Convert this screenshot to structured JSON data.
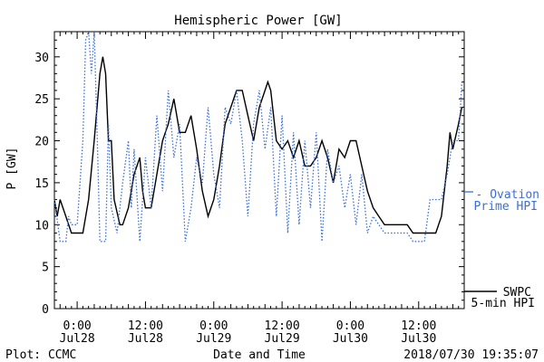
{
  "chart_data": {
    "type": "line",
    "title": "Hemispheric Power [GW]",
    "xlabel": "Date and Time",
    "ylabel": "P [GW]",
    "ylim": [
      0,
      33
    ],
    "yticks": [
      0,
      5,
      10,
      15,
      20,
      25,
      30
    ],
    "xlim": [
      "2018-07-27 20:00",
      "2018-07-30 20:00"
    ],
    "xticks": [
      {
        "t": "2018-07-28 00:00",
        "line1": "0:00",
        "line2": "Jul28"
      },
      {
        "t": "2018-07-28 12:00",
        "line1": "12:00",
        "line2": "Jul28"
      },
      {
        "t": "2018-07-29 00:00",
        "line1": "0:00",
        "line2": "Jul29"
      },
      {
        "t": "2018-07-29 12:00",
        "line1": "12:00",
        "line2": "Jul29"
      },
      {
        "t": "2018-07-30 00:00",
        "line1": "0:00",
        "line2": "Jul30"
      },
      {
        "t": "2018-07-30 12:00",
        "line1": "12:00",
        "line2": "Jul30"
      }
    ],
    "grid": false,
    "series": [
      {
        "name": "SWPC 5-min HPI",
        "color": "#000000",
        "style": "solid",
        "legend": [
          "SWPC",
          "5-min HPI"
        ],
        "points": [
          [
            "2018-07-27 20:00",
            13
          ],
          [
            "2018-07-27 20:30",
            11
          ],
          [
            "2018-07-27 21:00",
            13
          ],
          [
            "2018-07-27 22:00",
            11
          ],
          [
            "2018-07-27 23:00",
            9
          ],
          [
            "2018-07-28 00:00",
            9
          ],
          [
            "2018-07-28 01:00",
            9
          ],
          [
            "2018-07-28 02:00",
            13
          ],
          [
            "2018-07-28 03:00",
            20
          ],
          [
            "2018-07-28 04:00",
            28
          ],
          [
            "2018-07-28 04:30",
            30
          ],
          [
            "2018-07-28 05:00",
            28
          ],
          [
            "2018-07-28 05:30",
            20
          ],
          [
            "2018-07-28 06:00",
            20
          ],
          [
            "2018-07-28 06:30",
            13
          ],
          [
            "2018-07-28 07:30",
            10
          ],
          [
            "2018-07-28 08:00",
            10
          ],
          [
            "2018-07-28 09:00",
            12
          ],
          [
            "2018-07-28 10:00",
            16
          ],
          [
            "2018-07-28 11:00",
            18
          ],
          [
            "2018-07-28 11:30",
            14
          ],
          [
            "2018-07-28 12:00",
            12
          ],
          [
            "2018-07-28 13:00",
            12
          ],
          [
            "2018-07-28 14:00",
            16
          ],
          [
            "2018-07-28 15:00",
            20
          ],
          [
            "2018-07-28 15:30",
            21
          ],
          [
            "2018-07-28 16:00",
            22
          ],
          [
            "2018-07-28 17:00",
            25
          ],
          [
            "2018-07-28 18:00",
            21
          ],
          [
            "2018-07-28 19:00",
            21
          ],
          [
            "2018-07-28 20:00",
            23
          ],
          [
            "2018-07-28 21:00",
            19
          ],
          [
            "2018-07-28 22:00",
            14
          ],
          [
            "2018-07-28 23:00",
            11
          ],
          [
            "2018-07-29 00:00",
            13
          ],
          [
            "2018-07-29 01:00",
            17
          ],
          [
            "2018-07-29 02:00",
            22
          ],
          [
            "2018-07-29 03:00",
            24
          ],
          [
            "2018-07-29 04:00",
            26
          ],
          [
            "2018-07-29 05:00",
            26
          ],
          [
            "2018-07-29 06:00",
            23
          ],
          [
            "2018-07-29 07:00",
            20
          ],
          [
            "2018-07-29 08:00",
            24
          ],
          [
            "2018-07-29 09:00",
            26
          ],
          [
            "2018-07-29 09:30",
            27
          ],
          [
            "2018-07-29 10:00",
            26
          ],
          [
            "2018-07-29 11:00",
            20
          ],
          [
            "2018-07-29 12:00",
            19
          ],
          [
            "2018-07-29 13:00",
            20
          ],
          [
            "2018-07-29 14:00",
            18
          ],
          [
            "2018-07-29 15:00",
            20
          ],
          [
            "2018-07-29 16:00",
            17
          ],
          [
            "2018-07-29 17:00",
            17
          ],
          [
            "2018-07-29 18:00",
            18
          ],
          [
            "2018-07-29 19:00",
            20
          ],
          [
            "2018-07-29 20:00",
            18
          ],
          [
            "2018-07-29 21:00",
            15
          ],
          [
            "2018-07-29 22:00",
            19
          ],
          [
            "2018-07-29 23:00",
            18
          ],
          [
            "2018-07-30 00:00",
            20
          ],
          [
            "2018-07-30 01:00",
            20
          ],
          [
            "2018-07-30 02:00",
            17
          ],
          [
            "2018-07-30 03:00",
            14
          ],
          [
            "2018-07-30 04:00",
            12
          ],
          [
            "2018-07-30 05:00",
            11
          ],
          [
            "2018-07-30 06:00",
            10
          ],
          [
            "2018-07-30 07:00",
            10
          ],
          [
            "2018-07-30 08:00",
            10
          ],
          [
            "2018-07-30 09:00",
            10
          ],
          [
            "2018-07-30 10:00",
            10
          ],
          [
            "2018-07-30 11:00",
            9
          ],
          [
            "2018-07-30 12:00",
            9
          ],
          [
            "2018-07-30 13:00",
            9
          ],
          [
            "2018-07-30 14:00",
            9
          ],
          [
            "2018-07-30 15:00",
            9
          ],
          [
            "2018-07-30 16:00",
            11
          ],
          [
            "2018-07-30 17:00",
            17
          ],
          [
            "2018-07-30 17:30",
            21
          ],
          [
            "2018-07-30 18:00",
            19
          ],
          [
            "2018-07-30 19:00",
            22
          ],
          [
            "2018-07-30 19:35",
            24
          ]
        ]
      },
      {
        "name": "Ovation Prime HPI",
        "color": "#3a6fd8",
        "style": "dotted",
        "legend": [
          "- Ovation",
          "Prime HPI"
        ],
        "points": [
          [
            "2018-07-27 20:00",
            13
          ],
          [
            "2018-07-27 21:00",
            8
          ],
          [
            "2018-07-27 22:00",
            8
          ],
          [
            "2018-07-27 22:30",
            11
          ],
          [
            "2018-07-27 23:00",
            10
          ],
          [
            "2018-07-28 00:00",
            10
          ],
          [
            "2018-07-28 01:00",
            20
          ],
          [
            "2018-07-28 01:30",
            32
          ],
          [
            "2018-07-28 02:00",
            33
          ],
          [
            "2018-07-28 02:30",
            28
          ],
          [
            "2018-07-28 03:00",
            33
          ],
          [
            "2018-07-28 03:30",
            21
          ],
          [
            "2018-07-28 04:00",
            8
          ],
          [
            "2018-07-28 05:00",
            8
          ],
          [
            "2018-07-28 05:30",
            22
          ],
          [
            "2018-07-28 06:00",
            12
          ],
          [
            "2018-07-28 07:00",
            9
          ],
          [
            "2018-07-28 08:00",
            15
          ],
          [
            "2018-07-28 09:00",
            20
          ],
          [
            "2018-07-28 09:30",
            12
          ],
          [
            "2018-07-28 10:00",
            19
          ],
          [
            "2018-07-28 11:00",
            8
          ],
          [
            "2018-07-28 12:00",
            18
          ],
          [
            "2018-07-28 13:00",
            12
          ],
          [
            "2018-07-28 14:00",
            23
          ],
          [
            "2018-07-28 15:00",
            14
          ],
          [
            "2018-07-28 16:00",
            26
          ],
          [
            "2018-07-28 17:00",
            18
          ],
          [
            "2018-07-28 18:00",
            22
          ],
          [
            "2018-07-28 19:00",
            8
          ],
          [
            "2018-07-28 20:00",
            12
          ],
          [
            "2018-07-28 21:00",
            18
          ],
          [
            "2018-07-28 22:00",
            15
          ],
          [
            "2018-07-28 23:00",
            24
          ],
          [
            "2018-07-29 00:00",
            16
          ],
          [
            "2018-07-29 01:00",
            12
          ],
          [
            "2018-07-29 02:00",
            24
          ],
          [
            "2018-07-29 03:00",
            22
          ],
          [
            "2018-07-29 04:00",
            26
          ],
          [
            "2018-07-29 05:00",
            20
          ],
          [
            "2018-07-29 06:00",
            11
          ],
          [
            "2018-07-29 07:00",
            22
          ],
          [
            "2018-07-29 08:00",
            26
          ],
          [
            "2018-07-29 09:00",
            19
          ],
          [
            "2018-07-29 10:00",
            24
          ],
          [
            "2018-07-29 11:00",
            11
          ],
          [
            "2018-07-29 12:00",
            23
          ],
          [
            "2018-07-29 13:00",
            9
          ],
          [
            "2018-07-29 14:00",
            21
          ],
          [
            "2018-07-29 15:00",
            10
          ],
          [
            "2018-07-29 16:00",
            20
          ],
          [
            "2018-07-29 17:00",
            12
          ],
          [
            "2018-07-29 18:00",
            21
          ],
          [
            "2018-07-29 19:00",
            8
          ],
          [
            "2018-07-29 20:00",
            19
          ],
          [
            "2018-07-29 21:00",
            15
          ],
          [
            "2018-07-29 22:00",
            17
          ],
          [
            "2018-07-29 23:00",
            12
          ],
          [
            "2018-07-30 00:00",
            16
          ],
          [
            "2018-07-30 01:00",
            10
          ],
          [
            "2018-07-30 02:00",
            16
          ],
          [
            "2018-07-30 03:00",
            9
          ],
          [
            "2018-07-30 04:00",
            11
          ],
          [
            "2018-07-30 05:00",
            10
          ],
          [
            "2018-07-30 06:00",
            9
          ],
          [
            "2018-07-30 08:00",
            9
          ],
          [
            "2018-07-30 10:00",
            9
          ],
          [
            "2018-07-30 11:00",
            8
          ],
          [
            "2018-07-30 12:00",
            8
          ],
          [
            "2018-07-30 13:00",
            8
          ],
          [
            "2018-07-30 14:00",
            13
          ],
          [
            "2018-07-30 16:00",
            13
          ],
          [
            "2018-07-30 17:00",
            16
          ],
          [
            "2018-07-30 18:00",
            20
          ],
          [
            "2018-07-30 19:00",
            20
          ],
          [
            "2018-07-30 19:35",
            27
          ]
        ]
      }
    ]
  },
  "footer": {
    "left": "Plot: CCMC",
    "right": "2018/07/30 19:35:07"
  }
}
